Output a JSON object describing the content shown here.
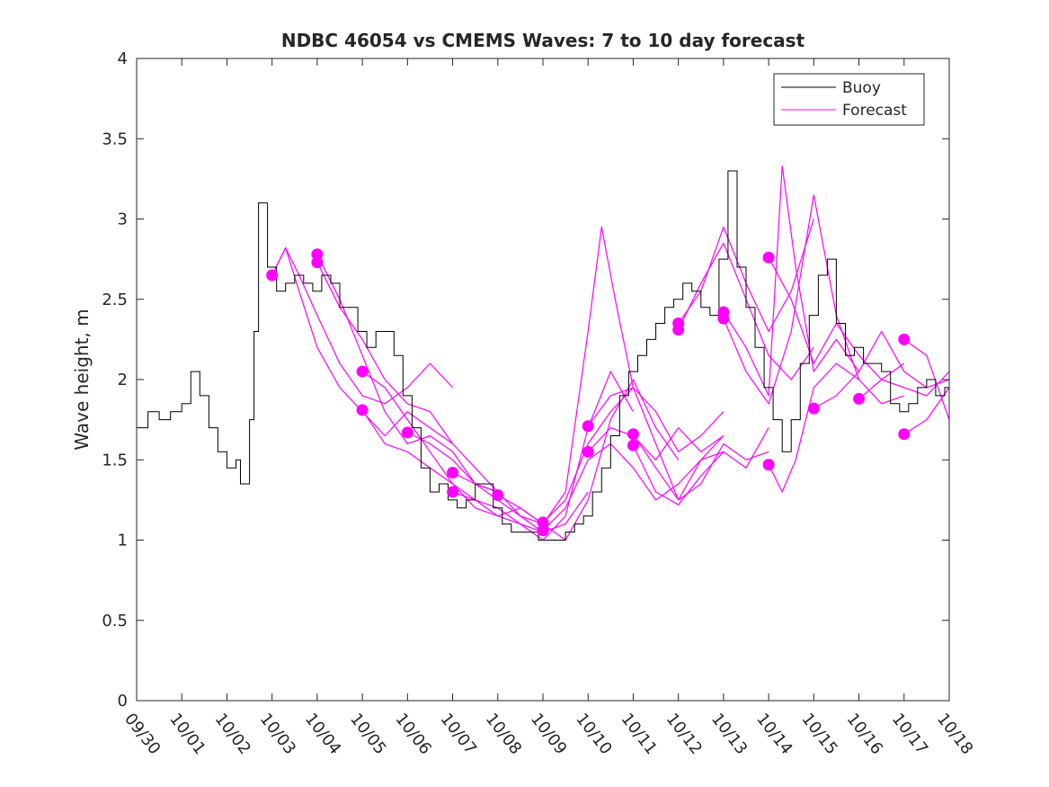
{
  "chart_data": {
    "type": "line",
    "title": "NDBC 46054 vs CMEMS Waves: 7 to 10 day forecast",
    "xlabel": "",
    "ylabel": "Wave height, m",
    "xlim": [
      0,
      18
    ],
    "ylim": [
      0,
      4
    ],
    "x_tick_values": [
      0,
      1,
      2,
      3,
      4,
      5,
      6,
      7,
      8,
      9,
      10,
      11,
      12,
      13,
      14,
      15,
      16,
      17,
      18
    ],
    "x_tick_labels": [
      "09/30",
      "10/01",
      "10/02",
      "10/03",
      "10/04",
      "10/05",
      "10/06",
      "10/07",
      "10/08",
      "10/09",
      "10/10",
      "10/11",
      "10/12",
      "10/13",
      "10/14",
      "10/15",
      "10/16",
      "10/17",
      "10/18"
    ],
    "y_tick_values": [
      0,
      0.5,
      1,
      1.5,
      2,
      2.5,
      3,
      3.5,
      4
    ],
    "y_tick_labels": [
      "0",
      "0.5",
      "1",
      "1.5",
      "2",
      "2.5",
      "3",
      "3.5",
      "4"
    ],
    "legend": {
      "location": "top-right",
      "entries": [
        "Buoy",
        "Forecast"
      ]
    },
    "colors": {
      "buoy": "#000000",
      "forecast": "#ff00ff",
      "axes": "#262626"
    },
    "buoy": {
      "name": "Buoy",
      "x": [
        0,
        0.25,
        0.5,
        0.75,
        1,
        1.2,
        1.4,
        1.6,
        1.8,
        2,
        2.2,
        2.3,
        2.5,
        2.6,
        2.7,
        2.9,
        3.1,
        3.3,
        3.5,
        3.7,
        3.9,
        4.1,
        4.3,
        4.5,
        4.7,
        4.9,
        5.1,
        5.3,
        5.5,
        5.7,
        5.9,
        6.1,
        6.3,
        6.5,
        6.7,
        6.9,
        7.1,
        7.3,
        7.5,
        7.7,
        7.9,
        8.1,
        8.3,
        8.5,
        8.7,
        8.9,
        9.1,
        9.3,
        9.5,
        9.7,
        9.9,
        10.1,
        10.3,
        10.5,
        10.7,
        10.9,
        11.1,
        11.3,
        11.5,
        11.7,
        11.9,
        12.1,
        12.3,
        12.5,
        12.7,
        12.9,
        13.1,
        13.3,
        13.5,
        13.7,
        13.9,
        14.1,
        14.3,
        14.5,
        14.7,
        14.9,
        15.1,
        15.3,
        15.5,
        15.7,
        15.9,
        16.1,
        16.3,
        16.5,
        16.7,
        16.9,
        17.1,
        17.3,
        17.5,
        17.7,
        17.9,
        18
      ],
      "values": [
        1.7,
        1.8,
        1.75,
        1.8,
        1.85,
        2.05,
        1.9,
        1.7,
        1.55,
        1.45,
        1.5,
        1.35,
        1.75,
        2.3,
        3.1,
        2.7,
        2.55,
        2.6,
        2.65,
        2.6,
        2.55,
        2.65,
        2.6,
        2.45,
        2.45,
        2.3,
        2.2,
        2.3,
        2.3,
        2.15,
        1.9,
        1.7,
        1.45,
        1.3,
        1.35,
        1.25,
        1.2,
        1.25,
        1.35,
        1.35,
        1.2,
        1.1,
        1.05,
        1.05,
        1.05,
        1.0,
        1.0,
        1.0,
        1.05,
        1.1,
        1.15,
        1.3,
        1.45,
        1.65,
        1.9,
        2.05,
        2.15,
        2.25,
        2.35,
        2.45,
        2.5,
        2.6,
        2.55,
        2.45,
        2.4,
        2.75,
        3.3,
        2.7,
        2.45,
        2.2,
        1.95,
        1.75,
        1.55,
        1.75,
        2.1,
        2.4,
        2.65,
        2.75,
        2.35,
        2.15,
        2.2,
        2.1,
        2.1,
        2.05,
        1.85,
        1.8,
        1.85,
        1.95,
        2.0,
        1.9,
        1.95,
        1.9
      ]
    },
    "forecasts": [
      {
        "name": "Forecast",
        "x": [
          3,
          3.3,
          3.6,
          4,
          4.5,
          5,
          5.5,
          6,
          6.5,
          7
        ],
        "values": [
          2.65,
          2.82,
          2.65,
          2.4,
          2.1,
          1.9,
          1.85,
          1.95,
          2.1,
          1.95
        ],
        "start_marker": 2.65
      },
      {
        "name": "Forecast",
        "x": [
          3,
          3.3,
          3.6,
          4,
          4.5,
          5,
          5.5,
          6,
          6.5,
          7
        ],
        "values": [
          2.65,
          2.82,
          2.55,
          2.2,
          1.95,
          1.8,
          1.65,
          1.8,
          1.7,
          1.6
        ],
        "start_marker": null
      },
      {
        "name": "Forecast",
        "x": [
          4,
          4.5,
          5,
          5.5,
          6,
          6.5,
          7,
          7.5,
          8
        ],
        "values": [
          2.78,
          2.5,
          2.15,
          1.8,
          1.6,
          1.65,
          1.55,
          1.35,
          1.3
        ],
        "start_marker": 2.78
      },
      {
        "name": "Forecast",
        "x": [
          4,
          4.5,
          5,
          5.5,
          6,
          6.5,
          7,
          7.5,
          8
        ],
        "values": [
          2.73,
          2.45,
          2.25,
          2.0,
          1.85,
          1.8,
          1.6,
          1.45,
          1.3
        ],
        "start_marker": 2.73
      },
      {
        "name": "Forecast",
        "x": [
          5,
          5.5,
          6,
          6.5,
          7,
          7.5,
          8,
          8.5,
          9
        ],
        "values": [
          2.05,
          1.95,
          1.75,
          1.55,
          1.35,
          1.2,
          1.15,
          1.2,
          1.1
        ],
        "start_marker": 2.05
      },
      {
        "name": "Forecast",
        "x": [
          5,
          5.5,
          6,
          6.5,
          7,
          7.5,
          8,
          8.5,
          9
        ],
        "values": [
          1.81,
          1.6,
          1.55,
          1.45,
          1.35,
          1.25,
          1.15,
          1.1,
          1.05
        ],
        "start_marker": 1.81
      },
      {
        "name": "Forecast",
        "x": [
          6,
          6.5,
          7,
          7.5,
          8,
          8.5,
          9,
          9.5,
          10
        ],
        "values": [
          1.67,
          1.6,
          1.5,
          1.35,
          1.25,
          1.15,
          1.05,
          1.1,
          1.3
        ],
        "start_marker": 1.67
      },
      {
        "name": "Forecast",
        "x": [
          7,
          7.5,
          8,
          8.5,
          9,
          9.5,
          10,
          10.3,
          10.6,
          11
        ],
        "values": [
          1.42,
          1.35,
          1.3,
          1.15,
          1.1,
          1.3,
          2.3,
          2.95,
          2.5,
          1.95
        ],
        "start_marker": 1.42
      },
      {
        "name": "Forecast",
        "x": [
          7,
          7.5,
          8,
          8.5,
          9,
          9.5,
          10,
          10.5,
          11
        ],
        "values": [
          1.3,
          1.25,
          1.2,
          1.1,
          1.0,
          1.15,
          1.7,
          2.05,
          1.8
        ],
        "start_marker": 1.3
      },
      {
        "name": "Forecast",
        "x": [
          8,
          8.5,
          9,
          9.5,
          10,
          10.5,
          11,
          11.5,
          12
        ],
        "values": [
          1.28,
          1.2,
          1.1,
          1.0,
          1.25,
          1.75,
          2.0,
          1.7,
          1.5
        ],
        "start_marker": 1.28
      },
      {
        "name": "Forecast",
        "x": [
          9,
          9.5,
          10,
          10.5,
          11,
          11.5,
          12,
          12.5,
          13
        ],
        "values": [
          1.11,
          1.25,
          1.6,
          1.8,
          1.95,
          1.6,
          1.25,
          1.5,
          1.65
        ],
        "start_marker": 1.11
      },
      {
        "name": "Forecast",
        "x": [
          9,
          9.5,
          10,
          10.5,
          11,
          11.5,
          12,
          12.5,
          13
        ],
        "values": [
          1.06,
          1.2,
          1.5,
          1.6,
          1.45,
          1.25,
          1.35,
          1.5,
          1.55
        ],
        "start_marker": 1.06
      },
      {
        "name": "Forecast",
        "x": [
          10,
          10.5,
          11,
          11.5,
          12,
          12.5,
          13
        ],
        "values": [
          1.71,
          1.9,
          1.95,
          1.8,
          1.55,
          1.65,
          1.8
        ],
        "start_marker": 1.71
      },
      {
        "name": "Forecast",
        "x": [
          10,
          10.5,
          11,
          11.5,
          12,
          12.5,
          13
        ],
        "values": [
          1.55,
          1.7,
          1.65,
          1.5,
          1.7,
          1.55,
          1.65
        ],
        "start_marker": 1.55
      },
      {
        "name": "Forecast",
        "x": [
          11,
          11.5,
          12,
          12.5,
          13,
          13.5,
          14
        ],
        "values": [
          1.66,
          1.45,
          1.25,
          1.35,
          1.6,
          1.5,
          1.55
        ],
        "start_marker": 1.66
      },
      {
        "name": "Forecast",
        "x": [
          11,
          11.5,
          12,
          12.5,
          13,
          13.5,
          14
        ],
        "values": [
          1.59,
          1.3,
          1.22,
          1.4,
          1.55,
          1.45,
          1.7
        ],
        "start_marker": 1.59
      },
      {
        "name": "Forecast",
        "x": [
          12,
          12.5,
          13,
          13.5,
          14,
          14.5,
          15
        ],
        "values": [
          2.35,
          2.55,
          2.95,
          2.6,
          2.3,
          2.55,
          3.0
        ],
        "start_marker": 2.35
      },
      {
        "name": "Forecast",
        "x": [
          12,
          12.5,
          13,
          13.5,
          14,
          14.5,
          15
        ],
        "values": [
          2.31,
          2.6,
          2.85,
          2.5,
          2.15,
          2.0,
          2.2
        ],
        "start_marker": 2.31
      },
      {
        "name": "Forecast",
        "x": [
          13,
          13.5,
          14,
          14.3,
          14.6,
          15,
          15.5,
          16
        ],
        "values": [
          2.42,
          2.2,
          1.9,
          3.33,
          2.7,
          2.05,
          2.25,
          2.05
        ],
        "start_marker": 2.42
      },
      {
        "name": "Forecast",
        "x": [
          13,
          13.5,
          14,
          14.5,
          15,
          15.5,
          16
        ],
        "values": [
          2.38,
          2.05,
          1.85,
          2.3,
          3.15,
          2.4,
          2.0
        ],
        "start_marker": 2.38
      },
      {
        "name": "Forecast",
        "x": [
          14,
          14.5,
          15,
          15.5,
          16,
          16.5,
          17
        ],
        "values": [
          2.76,
          2.5,
          2.1,
          2.35,
          2.15,
          2.0,
          2.1
        ],
        "start_marker": 2.76
      },
      {
        "name": "Forecast",
        "x": [
          14,
          14.3,
          14.6,
          15,
          15.5,
          16,
          16.5,
          17
        ],
        "values": [
          1.47,
          1.3,
          1.5,
          1.95,
          2.1,
          2.0,
          1.85,
          1.9
        ],
        "start_marker": 1.47
      },
      {
        "name": "Forecast",
        "x": [
          15,
          15.5,
          16,
          16.5,
          17,
          17.5,
          18
        ],
        "values": [
          1.82,
          1.9,
          2.05,
          2.3,
          2.05,
          1.95,
          2.0
        ],
        "start_marker": 1.82
      },
      {
        "name": "Forecast",
        "x": [
          16,
          16.5,
          17,
          17.5,
          18
        ],
        "values": [
          1.88,
          2.0,
          1.95,
          1.9,
          2.05
        ],
        "start_marker": 1.88
      },
      {
        "name": "Forecast",
        "x": [
          17,
          17.5,
          18
        ],
        "values": [
          2.25,
          2.15,
          1.75
        ],
        "start_marker": 2.25
      },
      {
        "name": "Forecast",
        "x": [
          17,
          17.5,
          18
        ],
        "values": [
          1.66,
          1.75,
          1.95
        ],
        "start_marker": 1.66
      }
    ]
  }
}
